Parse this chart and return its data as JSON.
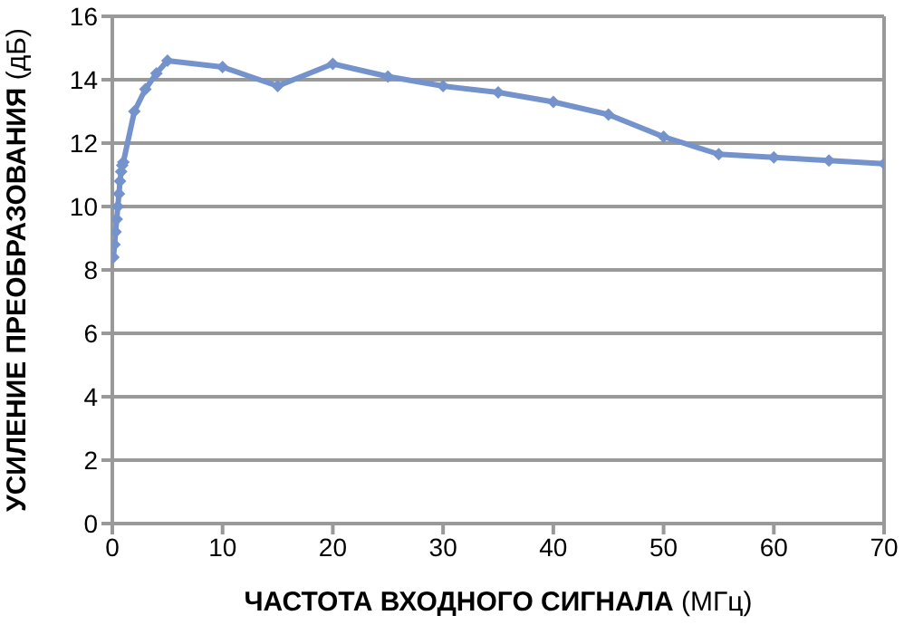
{
  "chart_data": {
    "type": "line",
    "xlabel": "ЧАСТОТА ВХОДНОГО СИГНАЛА (МГц)",
    "ylabel": "УСИЛЕНИЕ ПРЕОБРАЗОВАНИЯ (дБ)",
    "x": [
      0.1,
      0.2,
      0.3,
      0.4,
      0.5,
      0.6,
      0.7,
      0.8,
      0.9,
      1,
      2,
      3,
      4,
      5,
      10,
      15,
      20,
      25,
      30,
      35,
      40,
      45,
      50,
      55,
      60,
      65,
      70
    ],
    "series": [
      {
        "color": "#7493cc",
        "values": [
          8.4,
          8.8,
          9.2,
          9.6,
          10,
          10.4,
          10.8,
          11.1,
          11.3,
          11.4,
          13,
          13.7,
          14.2,
          14.6,
          14.4,
          13.8,
          14.5,
          14.1,
          13.8,
          13.6,
          13.3,
          12.9,
          12.2,
          11.65,
          11.55,
          11.45,
          11.35
        ]
      }
    ],
    "xlim": [
      0,
      70
    ],
    "xticks": [
      0,
      10,
      20,
      30,
      40,
      50,
      60,
      70
    ],
    "ylim": [
      0,
      16
    ],
    "yticks": [
      0,
      2,
      4,
      6,
      8,
      10,
      12,
      14,
      16
    ],
    "grid": "y",
    "marker": "diamond",
    "line_style": "solid"
  }
}
